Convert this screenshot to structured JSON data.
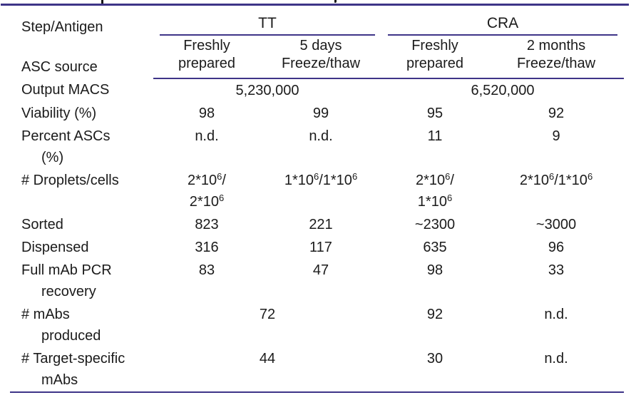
{
  "colors": {
    "rule_line": "#3e3488",
    "text": "#1b1b1b",
    "background": "#ffffff"
  },
  "cropped_caption": {
    "note_fragments": [
      "letter-descender-mark",
      "comma-mark"
    ]
  },
  "table": {
    "header": {
      "corner_top": "Step/Antigen",
      "corner_bottom": "ASC source",
      "groups": [
        {
          "label": "TT"
        },
        {
          "label": "CRA"
        }
      ],
      "subcolumns": [
        "Freshly\nprepared",
        "5 days\nFreeze/thaw",
        "Freshly\nprepared",
        "2 months\nFreeze/thaw"
      ]
    },
    "rows": [
      {
        "label": "Output MACS",
        "cells": [
          {
            "text": "5,230,000",
            "span": 2
          },
          {
            "text": "6,520,000",
            "span": 2
          }
        ]
      },
      {
        "label": "Viability (%)",
        "cells": [
          {
            "text": "98"
          },
          {
            "text": "99"
          },
          {
            "text": "95"
          },
          {
            "text": "92"
          }
        ]
      },
      {
        "label": "Percent ASCs\n(%)",
        "cells": [
          {
            "text": "n.d."
          },
          {
            "text": "n.d."
          },
          {
            "text": "11"
          },
          {
            "text": "9"
          }
        ]
      },
      {
        "label": "# Droplets/cells",
        "cells": [
          {
            "text": "2*10^6/\n2*10^6"
          },
          {
            "text": "1*10^6/1*10^6"
          },
          {
            "text": "2*10^6/\n1*10^6"
          },
          {
            "text": "2*10^6/1*10^6"
          }
        ]
      },
      {
        "label": "Sorted",
        "cells": [
          {
            "text": "823"
          },
          {
            "text": "221"
          },
          {
            "text": "~2300"
          },
          {
            "text": "~3000"
          }
        ]
      },
      {
        "label": "Dispensed",
        "cells": [
          {
            "text": "316"
          },
          {
            "text": "117"
          },
          {
            "text": "635"
          },
          {
            "text": "96"
          }
        ]
      },
      {
        "label": "Full mAb PCR\nrecovery",
        "cells": [
          {
            "text": "83"
          },
          {
            "text": "47"
          },
          {
            "text": "98"
          },
          {
            "text": "33"
          }
        ]
      },
      {
        "label": "# mAbs\nproduced",
        "cells": [
          {
            "text": "72",
            "span": 2
          },
          {
            "text": "92"
          },
          {
            "text": "n.d."
          }
        ]
      },
      {
        "label": "# Target-specific\nmAbs",
        "cells": [
          {
            "text": "44",
            "span": 2
          },
          {
            "text": "30"
          },
          {
            "text": "n.d."
          }
        ]
      }
    ]
  }
}
